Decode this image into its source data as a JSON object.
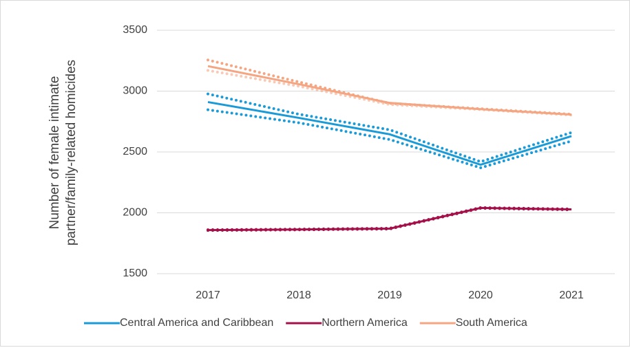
{
  "chart_data": {
    "type": "line",
    "ylabel": [
      "Number of female intimate",
      "partner/family-related homicides"
    ],
    "categories": [
      "2017",
      "2018",
      "2019",
      "2020",
      "2021"
    ],
    "ylim": [
      1500,
      3500
    ],
    "yticks": [
      1500,
      2000,
      2500,
      3000,
      3500
    ],
    "grid": true,
    "legend": "bottom",
    "series": [
      {
        "name": "Central America and Caribbean",
        "color": "#1a9ad6",
        "values": [
          2910,
          2780,
          2645,
          2395,
          2630
        ],
        "upper": [
          2977,
          2810,
          2682,
          2420,
          2660
        ],
        "lower": [
          2847,
          2740,
          2602,
          2370,
          2590
        ]
      },
      {
        "name": "Northern America",
        "color": "#a3104a",
        "values": [
          1858,
          1863,
          1870,
          2040,
          2028
        ],
        "upper": [
          1861,
          1866,
          1873,
          2043,
          2031
        ],
        "lower": [
          1855,
          1860,
          1867,
          2037,
          2025
        ]
      },
      {
        "name": "South America",
        "color": "#f4a582",
        "values": [
          3205,
          3057,
          2903,
          2852,
          2807
        ],
        "upper": [
          3256,
          3075,
          2900,
          2855,
          2810
        ],
        "lower": [
          3170,
          3040,
          2890,
          2848,
          2803
        ]
      }
    ]
  }
}
